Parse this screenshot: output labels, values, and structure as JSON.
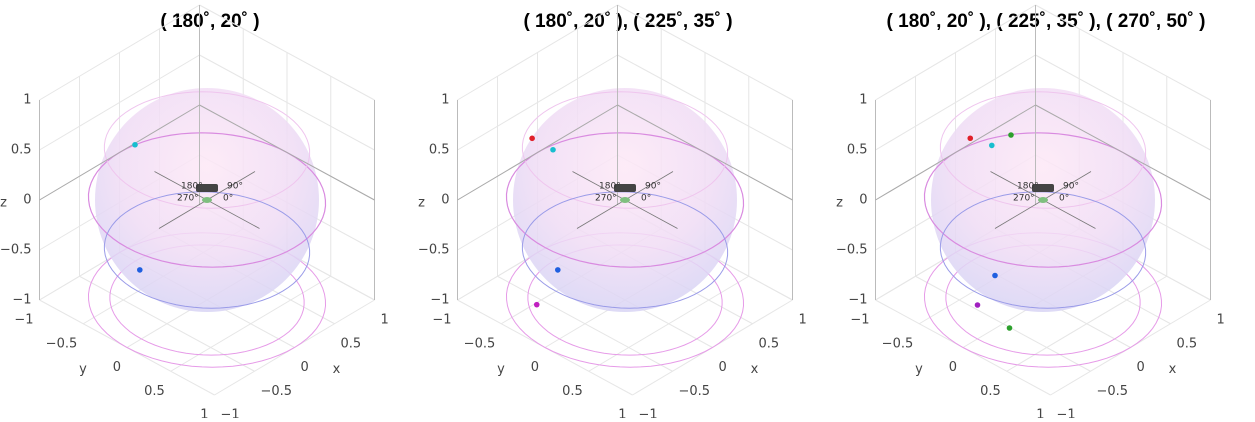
{
  "chart_data": [
    {
      "type": "scatter3d",
      "title": "( 180˚, 20˚ )",
      "xlabel": "x",
      "ylabel": "y",
      "zlabel": "z",
      "xlim": [
        -1,
        1
      ],
      "ylim": [
        -1,
        1
      ],
      "zlim": [
        -1,
        1
      ],
      "xticks": [
        {
          "value": -1,
          "label": "−1"
        },
        {
          "value": -0.5,
          "label": "−0.5"
        },
        0,
        0.5,
        1
      ],
      "yticks": [
        {
          "value": -1,
          "label": "−1"
        },
        {
          "value": -0.5,
          "label": "−0.5"
        },
        0,
        0.5,
        1
      ],
      "zticks": [
        {
          "value": -1,
          "label": "−1"
        },
        {
          "value": -0.5,
          "label": "−0.5"
        },
        0,
        0.5,
        1
      ],
      "annotations": [
        "180°",
        "90°",
        "270°",
        "0°"
      ],
      "series": [
        {
          "color": "#17becf",
          "x": [
            -0.9
          ],
          "y": [
            0
          ],
          "z": [
            0.98
          ]
        },
        {
          "color": "#1f5fe0",
          "x": [
            -0.84
          ],
          "y": [
            0
          ],
          "z": [
            -0.3
          ]
        }
      ]
    },
    {
      "type": "scatter3d",
      "title": "( 180˚, 20˚ ), ( 225˚, 35˚ )",
      "xlabel": "x",
      "ylabel": "y",
      "zlabel": "z",
      "xlim": [
        -1,
        1
      ],
      "ylim": [
        -1,
        1
      ],
      "zlim": [
        -1,
        1
      ],
      "xticks": [
        {
          "value": -1,
          "label": "−1"
        },
        {
          "value": -0.5,
          "label": "−0.5"
        },
        0,
        0.5,
        1
      ],
      "yticks": [
        {
          "value": -1,
          "label": "−1"
        },
        {
          "value": -0.5,
          "label": "−0.5"
        },
        0,
        0.5,
        1
      ],
      "zticks": [
        {
          "value": -1,
          "label": "−1"
        },
        {
          "value": -0.5,
          "label": "−0.5"
        },
        0,
        0.5,
        1
      ],
      "annotations": [
        "180°",
        "90°",
        "270°",
        "0°"
      ],
      "series": [
        {
          "color": "#e0202a",
          "x": [
            -0.8
          ],
          "y": [
            -0.33
          ],
          "z": [
            0.84
          ]
        },
        {
          "color": "#17becf",
          "x": [
            -0.9
          ],
          "y": [
            0
          ],
          "z": [
            0.93
          ]
        },
        {
          "color": "#1f5fe0",
          "x": [
            -0.84
          ],
          "y": [
            0
          ],
          "z": [
            -0.3
          ]
        },
        {
          "color": "#c020c0",
          "x": [
            -0.6
          ],
          "y": [
            -0.46
          ],
          "z": [
            -0.98
          ]
        }
      ]
    },
    {
      "type": "scatter3d",
      "title": "( 180˚, 20˚ ), ( 225˚, 35˚ ), ( 270˚, 50˚ )",
      "xlabel": "x",
      "ylabel": "y",
      "zlabel": "z",
      "xlim": [
        -1,
        1
      ],
      "ylim": [
        -1,
        1
      ],
      "zlim": [
        -1,
        1
      ],
      "xticks": [
        {
          "value": -1,
          "label": "−1"
        },
        {
          "value": -0.5,
          "label": "−0.5"
        },
        0,
        0.5,
        1
      ],
      "yticks": [
        {
          "value": -1,
          "label": "−1"
        },
        {
          "value": -0.5,
          "label": "−0.5"
        },
        0,
        0.5,
        1
      ],
      "zticks": [
        {
          "value": -1,
          "label": "−1"
        },
        {
          "value": -0.5,
          "label": "−0.5"
        },
        0,
        0.5,
        1
      ],
      "annotations": [
        "180°",
        "90°",
        "270°",
        "0°"
      ],
      "series": [
        {
          "color": "#e0202a",
          "x": [
            -0.8
          ],
          "y": [
            -0.1
          ],
          "z": [
            0.95
          ]
        },
        {
          "color": "#17becf",
          "x": [
            -0.64
          ],
          "y": [
            0
          ],
          "z": [
            0.85
          ]
        },
        {
          "color": "#2ca02c",
          "x": [
            -0.4
          ],
          "y": [
            0
          ],
          "z": [
            0.84
          ]
        },
        {
          "color": "#1f5fe0",
          "x": [
            -0.6
          ],
          "y": [
            0
          ],
          "z": [
            -0.47
          ]
        },
        {
          "color": "#a020c0",
          "x": [
            -0.6
          ],
          "y": [
            -0.2
          ],
          "z": [
            -0.86
          ]
        },
        {
          "color": "#2ca02c",
          "x": [
            -0.2
          ],
          "y": [
            -0.2
          ],
          "z": [
            -1.28
          ]
        }
      ]
    }
  ]
}
